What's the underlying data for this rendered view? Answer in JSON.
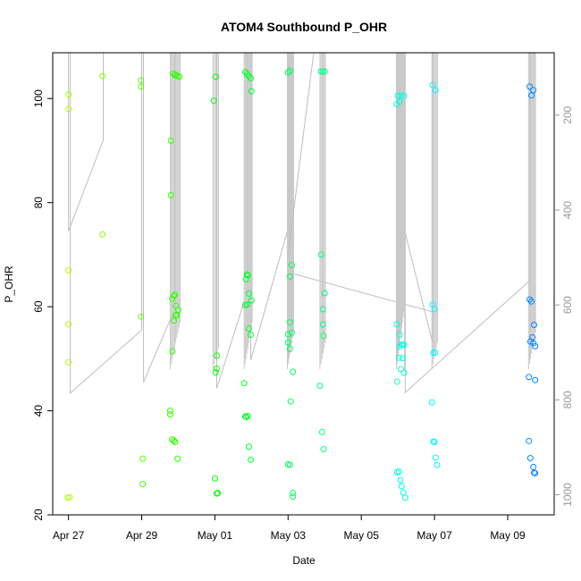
{
  "chart_data": {
    "type": "scatter",
    "title": "ATOM4 Southbound P_OHR",
    "xlabel": "Date",
    "ylabel": "P_OHR",
    "x_ticks": [
      {
        "label": "Apr 27",
        "day": 0
      },
      {
        "label": "Apr 29",
        "day": 2
      },
      {
        "label": "May 01",
        "day": 4
      },
      {
        "label": "May 03",
        "day": 6
      },
      {
        "label": "May 05",
        "day": 8
      },
      {
        "label": "May 07",
        "day": 10
      },
      {
        "label": "May 09",
        "day": 12
      }
    ],
    "xlim": [
      -0.43,
      13.27
    ],
    "ylim": [
      20,
      108.8
    ],
    "y_ticks": [
      20,
      40,
      60,
      80,
      100
    ],
    "y2_ticks": [
      200,
      400,
      600,
      800,
      1000
    ],
    "y2lim": [
      1042.4,
      68.5
    ],
    "grid": false,
    "point_style": "open circles, color progresses green-yellow to cyan to blue over time",
    "points": [
      {
        "x": 0.0,
        "y": 100.8
      },
      {
        "x": 0.0,
        "y": 98.0
      },
      {
        "x": 0.0,
        "y": 67.0
      },
      {
        "x": 0.0,
        "y": 56.6
      },
      {
        "x": 0.0,
        "y": 49.3
      },
      {
        "x": 0.03,
        "y": 23.4
      },
      {
        "x": -0.02,
        "y": 23.3
      },
      {
        "x": 0.93,
        "y": 104.3
      },
      {
        "x": 0.93,
        "y": 73.9
      },
      {
        "x": 1.98,
        "y": 103.5
      },
      {
        "x": 1.98,
        "y": 102.3
      },
      {
        "x": 1.98,
        "y": 58.1
      },
      {
        "x": 2.03,
        "y": 30.8
      },
      {
        "x": 2.03,
        "y": 25.9
      },
      {
        "x": 2.8,
        "y": 91.9
      },
      {
        "x": 2.8,
        "y": 81.4
      },
      {
        "x": 2.83,
        "y": 61.5
      },
      {
        "x": 2.88,
        "y": 62.1
      },
      {
        "x": 2.91,
        "y": 62.3
      },
      {
        "x": 2.88,
        "y": 57.3
      },
      {
        "x": 2.93,
        "y": 58.3
      },
      {
        "x": 2.96,
        "y": 58.4
      },
      {
        "x": 2.93,
        "y": 60.2
      },
      {
        "x": 3.0,
        "y": 59.4
      },
      {
        "x": 2.84,
        "y": 51.4
      },
      {
        "x": 2.78,
        "y": 40.0
      },
      {
        "x": 2.78,
        "y": 39.3
      },
      {
        "x": 2.83,
        "y": 34.5
      },
      {
        "x": 2.88,
        "y": 34.3
      },
      {
        "x": 2.91,
        "y": 34.0
      },
      {
        "x": 2.98,
        "y": 30.8
      },
      {
        "x": 2.86,
        "y": 104.8
      },
      {
        "x": 2.9,
        "y": 104.5
      },
      {
        "x": 2.93,
        "y": 104.6
      },
      {
        "x": 2.98,
        "y": 104.3
      },
      {
        "x": 3.03,
        "y": 104.2
      },
      {
        "x": 4.02,
        "y": 104.2
      },
      {
        "x": 3.97,
        "y": 99.6
      },
      {
        "x": 4.05,
        "y": 50.6
      },
      {
        "x": 4.05,
        "y": 48.1
      },
      {
        "x": 4.02,
        "y": 47.4
      },
      {
        "x": 4.0,
        "y": 27.0
      },
      {
        "x": 4.08,
        "y": 24.2
      },
      {
        "x": 4.05,
        "y": 24.1
      },
      {
        "x": 4.83,
        "y": 105.1
      },
      {
        "x": 4.88,
        "y": 104.7
      },
      {
        "x": 4.93,
        "y": 104.3
      },
      {
        "x": 4.98,
        "y": 103.9
      },
      {
        "x": 5.0,
        "y": 101.4
      },
      {
        "x": 4.85,
        "y": 65.3
      },
      {
        "x": 4.9,
        "y": 66.0
      },
      {
        "x": 4.88,
        "y": 66.2
      },
      {
        "x": 4.88,
        "y": 60.4
      },
      {
        "x": 4.83,
        "y": 60.3
      },
      {
        "x": 4.93,
        "y": 62.5
      },
      {
        "x": 5.0,
        "y": 61.2
      },
      {
        "x": 4.93,
        "y": 55.8
      },
      {
        "x": 4.98,
        "y": 54.6
      },
      {
        "x": 4.8,
        "y": 45.3
      },
      {
        "x": 4.83,
        "y": 38.9
      },
      {
        "x": 4.9,
        "y": 39.0
      },
      {
        "x": 4.86,
        "y": 38.8
      },
      {
        "x": 4.93,
        "y": 33.1
      },
      {
        "x": 4.98,
        "y": 30.6
      },
      {
        "x": 6.0,
        "y": 105.0
      },
      {
        "x": 6.05,
        "y": 105.3
      },
      {
        "x": 6.1,
        "y": 68.0
      },
      {
        "x": 6.05,
        "y": 65.8
      },
      {
        "x": 6.05,
        "y": 57.0
      },
      {
        "x": 6.1,
        "y": 55.0
      },
      {
        "x": 6.0,
        "y": 54.7
      },
      {
        "x": 6.0,
        "y": 53.1
      },
      {
        "x": 6.05,
        "y": 51.9
      },
      {
        "x": 6.13,
        "y": 47.5
      },
      {
        "x": 6.07,
        "y": 41.8
      },
      {
        "x": 6.0,
        "y": 29.7
      },
      {
        "x": 6.05,
        "y": 29.6
      },
      {
        "x": 6.13,
        "y": 24.2
      },
      {
        "x": 6.13,
        "y": 23.5
      },
      {
        "x": 6.9,
        "y": 105.2
      },
      {
        "x": 6.95,
        "y": 105.2
      },
      {
        "x": 7.0,
        "y": 105.2
      },
      {
        "x": 6.9,
        "y": 70.0
      },
      {
        "x": 7.0,
        "y": 62.6
      },
      {
        "x": 6.95,
        "y": 59.5
      },
      {
        "x": 6.95,
        "y": 56.6
      },
      {
        "x": 6.97,
        "y": 54.4
      },
      {
        "x": 6.87,
        "y": 44.8
      },
      {
        "x": 6.93,
        "y": 35.9
      },
      {
        "x": 6.97,
        "y": 32.6
      },
      {
        "x": 9.0,
        "y": 100.5
      },
      {
        "x": 9.05,
        "y": 99.4
      },
      {
        "x": 9.08,
        "y": 100.6
      },
      {
        "x": 8.97,
        "y": 98.9
      },
      {
        "x": 9.17,
        "y": 100.5
      },
      {
        "x": 8.97,
        "y": 56.6
      },
      {
        "x": 9.05,
        "y": 54.6
      },
      {
        "x": 9.1,
        "y": 52.7
      },
      {
        "x": 9.13,
        "y": 52.7
      },
      {
        "x": 9.05,
        "y": 52.3
      },
      {
        "x": 9.17,
        "y": 52.7
      },
      {
        "x": 9.03,
        "y": 50.2
      },
      {
        "x": 9.13,
        "y": 50.1
      },
      {
        "x": 9.08,
        "y": 48.0
      },
      {
        "x": 9.17,
        "y": 47.3
      },
      {
        "x": 8.98,
        "y": 45.6
      },
      {
        "x": 8.98,
        "y": 28.2
      },
      {
        "x": 9.03,
        "y": 28.3
      },
      {
        "x": 9.07,
        "y": 26.7
      },
      {
        "x": 9.1,
        "y": 25.5
      },
      {
        "x": 9.15,
        "y": 24.3
      },
      {
        "x": 9.2,
        "y": 23.3
      },
      {
        "x": 9.95,
        "y": 102.6
      },
      {
        "x": 10.03,
        "y": 101.6
      },
      {
        "x": 9.95,
        "y": 60.4
      },
      {
        "x": 10.0,
        "y": 59.5
      },
      {
        "x": 9.97,
        "y": 51.1
      },
      {
        "x": 10.02,
        "y": 51.2
      },
      {
        "x": 9.93,
        "y": 41.6
      },
      {
        "x": 9.97,
        "y": 34.1
      },
      {
        "x": 10.0,
        "y": 34.0
      },
      {
        "x": 10.03,
        "y": 31.0
      },
      {
        "x": 10.07,
        "y": 29.6
      },
      {
        "x": 12.6,
        "y": 102.3
      },
      {
        "x": 12.7,
        "y": 101.6
      },
      {
        "x": 12.65,
        "y": 100.6
      },
      {
        "x": 12.6,
        "y": 61.4
      },
      {
        "x": 12.65,
        "y": 61.0
      },
      {
        "x": 12.72,
        "y": 56.5
      },
      {
        "x": 12.62,
        "y": 53.3
      },
      {
        "x": 12.68,
        "y": 54.1
      },
      {
        "x": 12.7,
        "y": 53.0
      },
      {
        "x": 12.75,
        "y": 52.4
      },
      {
        "x": 12.58,
        "y": 46.5
      },
      {
        "x": 12.75,
        "y": 45.9
      },
      {
        "x": 12.58,
        "y": 34.2
      },
      {
        "x": 12.62,
        "y": 30.9
      },
      {
        "x": 12.7,
        "y": 29.2
      },
      {
        "x": 12.72,
        "y": 28.1
      },
      {
        "x": 12.75,
        "y": 28.0
      }
    ],
    "depth_profiles": [
      {
        "x_base": -0.03,
        "comment": "gray profile",
        "lines": [
          [
            -0.03,
            108.8,
            -0.03,
            74.5,
            0.95,
            92.0,
            0.95,
            108.8
          ]
        ]
      },
      {
        "x_base": 0.05,
        "lines": [
          [
            0.05,
            108.8,
            0.05,
            43.4,
            2.0,
            55.5,
            2.0,
            50.0
          ]
        ]
      },
      {
        "x_base": 2.05,
        "lines": [
          [
            2.05,
            45.5,
            2.9,
            59.5,
            2.9,
            108.8
          ]
        ]
      },
      {
        "x_base": 4.05,
        "lines": [
          [
            4.05,
            44.3,
            4.9,
            63.2,
            4.9,
            108.8
          ]
        ]
      }
    ]
  }
}
